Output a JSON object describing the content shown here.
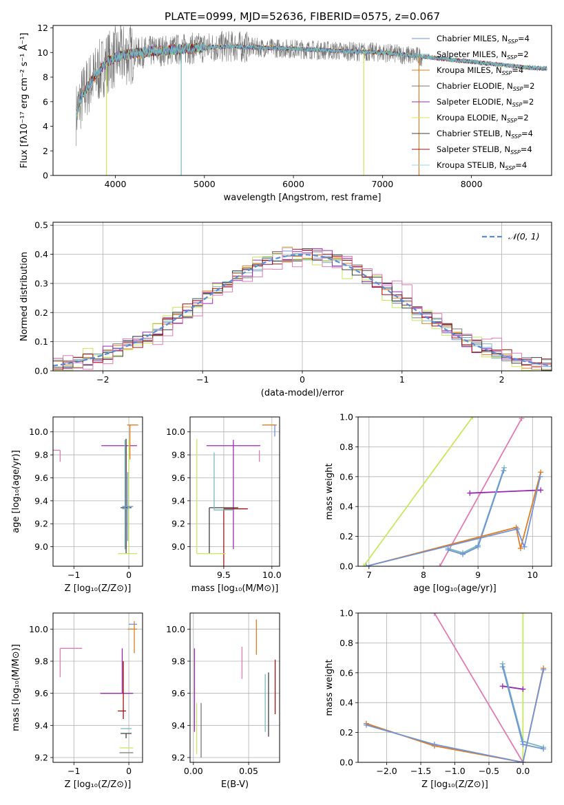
{
  "colors": {
    "chabrier_miles": "#6f93d8",
    "salpeter_miles": "#79b8b8",
    "kroupa_miles": "#e07b1e",
    "chabrier_elodie": "#777777",
    "salpeter_elodie": "#9a27b4",
    "kroupa_elodie": "#d8e85a",
    "chabrier_stelib": "#3f3f3f",
    "salpeter_stelib": "#a01010",
    "kroupa_stelib": "#8fd8e8",
    "pink": "#e07ab2",
    "lime": "#c6e85a",
    "normal_curve": "#5b8bd6",
    "grid": "#b0b0b0"
  },
  "chart_data": [
    {
      "id": "spectrum",
      "type": "line",
      "title": "PLATE=0999, MJD=52636, FIBERID=0575, z=0.067",
      "xlabel": "wavelength [Angstrom, rest frame]",
      "ylabel": "Flux [fλ10⁻¹⁷ erg cm⁻² s⁻¹ Å⁻¹]",
      "xlim": [
        3300,
        8900
      ],
      "ylim": [
        0,
        12.2
      ],
      "xticks": [
        4000,
        5000,
        6000,
        7000,
        8000
      ],
      "yticks": [
        0,
        2,
        4,
        6,
        8,
        10,
        12
      ],
      "grid": false,
      "legend_position": "top-right",
      "legend": [
        {
          "label": "Chabrier MILES, N",
          "sub": "SSP",
          "suffix": "=4",
          "color": "chabrier_miles"
        },
        {
          "label": "Salpeter MILES, N",
          "sub": "SSP",
          "suffix": "=2",
          "color": "salpeter_miles"
        },
        {
          "label": "Kroupa MILES, N",
          "sub": "SSP",
          "suffix": "=4",
          "color": "kroupa_miles"
        },
        {
          "label": "Chabrier ELODIE, N",
          "sub": "SSP",
          "suffix": "=2",
          "color": "chabrier_elodie"
        },
        {
          "label": "Salpeter ELODIE, N",
          "sub": "SSP",
          "suffix": "=2",
          "color": "salpeter_elodie"
        },
        {
          "label": "Kroupa ELODIE, N",
          "sub": "SSP",
          "suffix": "=2",
          "color": "kroupa_elodie"
        },
        {
          "label": "Chabrier STELIB, N",
          "sub": "SSP",
          "suffix": "=4",
          "color": "chabrier_stelib"
        },
        {
          "label": "Salpeter STELIB, N",
          "sub": "SSP",
          "suffix": "=4",
          "color": "salpeter_stelib"
        },
        {
          "label": "Kroupa STELIB, N",
          "sub": "SSP",
          "suffix": "=4",
          "color": "kroupa_stelib"
        }
      ],
      "model_curve": {
        "x": [
          3560,
          3620,
          3700,
          3800,
          3900,
          4000,
          4100,
          4200,
          4400,
          4600,
          4800,
          5000,
          5300,
          5600,
          6000,
          6300,
          6600,
          7000,
          7400,
          7800,
          8200,
          8600,
          8800
        ],
        "y": [
          5.0,
          6.3,
          7.4,
          8.3,
          9.2,
          9.6,
          9.8,
          9.9,
          10.1,
          10.2,
          10.3,
          10.4,
          10.5,
          10.4,
          10.3,
          10.2,
          10.1,
          10.0,
          9.7,
          9.4,
          9.1,
          8.8,
          8.7
        ]
      },
      "observed_extent": [
        3560,
        7450
      ],
      "glitches": [
        {
          "x": 3900,
          "color": "lime"
        },
        {
          "x": 4740,
          "color": "salpeter_miles"
        },
        {
          "x": 6790,
          "color": "lime"
        },
        {
          "x": 7410,
          "color": "kroupa_miles"
        }
      ]
    },
    {
      "id": "residuals",
      "type": "histogram",
      "xlabel": "(data-model)/error",
      "ylabel": "Normed distribution",
      "xlim": [
        -2.5,
        2.5
      ],
      "ylim": [
        0,
        0.51
      ],
      "xticks": [
        -2,
        -1,
        0,
        1,
        2
      ],
      "yticks": [
        0.0,
        0.1,
        0.2,
        0.3,
        0.4,
        0.5
      ],
      "grid": true,
      "legend_position": "top-right",
      "legend": [
        {
          "label": "𝒩(0, 1)",
          "color": "normal_curve",
          "style": "dashed"
        }
      ],
      "bin_width": 0.1,
      "series": [
        {
          "color": "chabrier_miles",
          "offset": 0.0,
          "spread": 0.006
        },
        {
          "color": "salpeter_miles",
          "offset": 0.01,
          "spread": 0.008
        },
        {
          "color": "kroupa_miles",
          "offset": -0.02,
          "spread": 0.01
        },
        {
          "color": "chabrier_elodie",
          "offset": 0.0,
          "spread": 0.012
        },
        {
          "color": "salpeter_elodie",
          "offset": 0.01,
          "spread": 0.014
        },
        {
          "color": "lime",
          "offset": -0.05,
          "spread": 0.03
        },
        {
          "color": "chabrier_stelib",
          "offset": 0.02,
          "spread": 0.01
        },
        {
          "color": "salpeter_stelib",
          "offset": 0.0,
          "spread": 0.012
        },
        {
          "color": "pink",
          "offset": 0.12,
          "spread": 0.03
        }
      ]
    },
    {
      "id": "age_vs_Z",
      "type": "errorbar",
      "xlabel": "Z [log₁₀(Z/Z⊙)]",
      "ylabel": "age  [log₁₀(age/yr)]",
      "xlim": [
        -1.38,
        0.25
      ],
      "ylim": [
        8.83,
        10.13
      ],
      "xticks": [
        -1,
        0
      ],
      "yticks": [
        9.0,
        9.2,
        9.4,
        9.6,
        9.8,
        10.0
      ],
      "grid": true,
      "points": [
        {
          "x": -1.25,
          "y": 9.84,
          "xerr": [
            0.3,
            0.0
          ],
          "yerr": [
            0.1,
            0.0
          ],
          "color": "pink"
        },
        {
          "x": -0.05,
          "y": 9.88,
          "xerr": [
            0.45,
            0.2
          ],
          "yerr": [
            0.9,
            0.0
          ],
          "color": "salpeter_elodie"
        },
        {
          "x": 0.02,
          "y": 10.06,
          "xerr": [
            0.05,
            0.15
          ],
          "yerr": [
            0.3,
            0.0
          ],
          "color": "kroupa_miles"
        },
        {
          "x": -0.05,
          "y": 9.34,
          "xerr": [
            0.1,
            0.1
          ],
          "yerr": [
            0.4,
            0.6
          ],
          "color": "chabrier_stelib"
        },
        {
          "x": -0.07,
          "y": 9.33,
          "xerr": [
            0.05,
            0.07
          ],
          "yerr": [
            0.35,
            0.6
          ],
          "color": "salpeter_miles"
        },
        {
          "x": 0.0,
          "y": 8.94,
          "xerr": [
            0.2,
            0.15
          ],
          "yerr": [
            0.0,
            1.0
          ],
          "color": "lime"
        },
        {
          "x": -0.02,
          "y": 9.35,
          "xerr": [
            0.1,
            0.1
          ],
          "yerr": [
            0.3,
            0.3
          ],
          "color": "chabrier_miles"
        }
      ]
    },
    {
      "id": "age_vs_mass",
      "type": "errorbar",
      "xlabel": "mass [log₁₀(M/M⊙)]",
      "ylabel": "",
      "xlim": [
        9.15,
        10.08
      ],
      "ylim": [
        8.83,
        10.13
      ],
      "xticks": [
        9.5,
        10.0
      ],
      "yticks": [
        9.0,
        9.2,
        9.4,
        9.6,
        9.8,
        10.0
      ],
      "grid": true,
      "points": [
        {
          "x": 9.87,
          "y": 9.84,
          "xerr": [
            0.0,
            0.0
          ],
          "yerr": [
            0.1,
            0.0
          ],
          "color": "pink"
        },
        {
          "x": 9.6,
          "y": 9.88,
          "xerr": [
            0.28,
            0.28
          ],
          "yerr": [
            0.9,
            0.05
          ],
          "color": "salpeter_elodie"
        },
        {
          "x": 10.0,
          "y": 10.06,
          "xerr": [
            0.1,
            0.05
          ],
          "yerr": [
            0.0,
            0.0
          ],
          "color": "kroupa_miles"
        },
        {
          "x": 9.35,
          "y": 9.34,
          "xerr": [
            0.0,
            0.3
          ],
          "yerr": [
            0.4,
            0.0
          ],
          "color": "chabrier_stelib"
        },
        {
          "x": 9.5,
          "y": 9.33,
          "xerr": [
            0.0,
            0.25
          ],
          "yerr": [
            0.5,
            0.0
          ],
          "color": "salpeter_stelib"
        },
        {
          "x": 9.22,
          "y": 8.94,
          "xerr": [
            0.0,
            0.3
          ],
          "yerr": [
            0.0,
            1.0
          ],
          "color": "lime"
        },
        {
          "x": 9.4,
          "y": 9.32,
          "xerr": [
            0.0,
            0.2
          ],
          "yerr": [
            0.0,
            0.5
          ],
          "color": "salpeter_miles"
        },
        {
          "x": 10.03,
          "y": 10.06,
          "xerr": [
            0.0,
            0.0
          ],
          "yerr": [
            0.1,
            0.0
          ],
          "color": "chabrier_miles"
        }
      ]
    },
    {
      "id": "massweight_vs_age",
      "type": "line",
      "xlabel": "age  [log₁₀(age/yr)]",
      "ylabel": "mass weight",
      "xlim": [
        6.8,
        10.35
      ],
      "ylim": [
        0,
        1.0
      ],
      "xticks": [
        7,
        8,
        9,
        10
      ],
      "yticks": [
        0.0,
        0.2,
        0.4,
        0.6,
        0.8,
        1.0
      ],
      "grid": true,
      "series": [
        {
          "name": "",
          "color": "lime",
          "x": [
            6.9,
            8.9
          ],
          "y": [
            0.0,
            1.0
          ]
        },
        {
          "name": "",
          "color": "pink",
          "x": [
            8.3,
            9.8
          ],
          "y": [
            0.0,
            0.99
          ]
        },
        {
          "name": "",
          "color": "salpeter_elodie",
          "x": [
            8.85,
            10.15
          ],
          "y": [
            0.49,
            0.51
          ]
        },
        {
          "name": "",
          "color": "salpeter_miles",
          "x": [
            8.45,
            8.72,
            9.0,
            9.48
          ],
          "y": [
            0.12,
            0.09,
            0.14,
            0.66
          ]
        },
        {
          "name": "",
          "color": "chabrier_miles",
          "x": [
            8.45,
            8.72,
            9.0,
            9.47
          ],
          "y": [
            0.11,
            0.08,
            0.13,
            0.64
          ]
        },
        {
          "name": "",
          "color": "kroupa_miles",
          "x": [
            6.95,
            9.7,
            9.78,
            10.15
          ],
          "y": [
            0.0,
            0.26,
            0.12,
            0.63
          ]
        },
        {
          "name": "",
          "color": "chabrier_miles",
          "x": [
            6.95,
            9.72,
            9.85,
            10.14
          ],
          "y": [
            0.0,
            0.25,
            0.13,
            0.6
          ]
        }
      ]
    },
    {
      "id": "mass_vs_Z",
      "type": "errorbar",
      "xlabel": "Z [log₁₀(Z/Z⊙)]",
      "ylabel": "mass [log₁₀(M/M⊙)]",
      "xlim": [
        -1.38,
        0.25
      ],
      "ylim": [
        9.17,
        10.1
      ],
      "xticks": [
        -1,
        0
      ],
      "yticks": [
        9.2,
        9.4,
        9.6,
        9.8,
        10.0
      ],
      "grid": true,
      "points": [
        {
          "x": -1.25,
          "y": 9.88,
          "xerr": [
            0.0,
            0.4
          ],
          "yerr": [
            0.18,
            0.0
          ],
          "color": "pink"
        },
        {
          "x": -0.12,
          "y": 9.6,
          "xerr": [
            0.4,
            0.2
          ],
          "yerr": [
            0.0,
            0.28
          ],
          "color": "salpeter_elodie"
        },
        {
          "x": 0.1,
          "y": 10.0,
          "xerr": [
            0.12,
            0.05
          ],
          "yerr": [
            0.15,
            0.05
          ],
          "color": "kroupa_miles"
        },
        {
          "x": 0.1,
          "y": 10.03,
          "xerr": [
            0.1,
            0.05
          ],
          "yerr": [
            0.0,
            0.0
          ],
          "color": "chabrier_miles"
        },
        {
          "x": -0.1,
          "y": 9.49,
          "xerr": [
            0.1,
            0.05
          ],
          "yerr": [
            0.05,
            0.31
          ],
          "color": "salpeter_stelib"
        },
        {
          "x": -0.05,
          "y": 9.38,
          "xerr": [
            0.1,
            0.1
          ],
          "yerr": [
            0.0,
            0.0
          ],
          "color": "salpeter_miles"
        },
        {
          "x": -0.05,
          "y": 9.35,
          "xerr": [
            0.1,
            0.1
          ],
          "yerr": [
            0.03,
            0.0
          ],
          "color": "chabrier_stelib"
        },
        {
          "x": -0.02,
          "y": 9.26,
          "xerr": [
            0.15,
            0.1
          ],
          "yerr": [
            0.0,
            0.0
          ],
          "color": "lime"
        },
        {
          "x": -0.02,
          "y": 9.23,
          "xerr": [
            0.15,
            0.1
          ],
          "yerr": [
            0.0,
            0.0
          ],
          "color": "chabrier_elodie"
        }
      ]
    },
    {
      "id": "mass_vs_ebv",
      "type": "errorbar",
      "xlabel": "E(B-V)",
      "ylabel": "",
      "xlim": [
        -0.003,
        0.078
      ],
      "ylim": [
        9.17,
        10.1
      ],
      "xticks": [
        0.0,
        0.05
      ],
      "yticks": [
        9.2,
        9.4,
        9.6,
        9.8,
        10.0
      ],
      "grid": true,
      "points": [
        {
          "x": 0.001,
          "y": 9.62,
          "xerr": [
            0,
            0
          ],
          "yerr": [
            0.26,
            0.26
          ],
          "color": "salpeter_elodie"
        },
        {
          "x": 0.003,
          "y": 9.38,
          "xerr": [
            0,
            0
          ],
          "yerr": [
            0.16,
            0.16
          ],
          "color": "lime"
        },
        {
          "x": 0.007,
          "y": 9.37,
          "xerr": [
            0,
            0
          ],
          "yerr": [
            0.17,
            0.17
          ],
          "color": "chabrier_elodie"
        },
        {
          "x": 0.044,
          "y": 9.79,
          "xerr": [
            0,
            0
          ],
          "yerr": [
            0.1,
            0.1
          ],
          "color": "pink"
        },
        {
          "x": 0.057,
          "y": 9.95,
          "xerr": [
            0,
            0
          ],
          "yerr": [
            0.11,
            0.11
          ],
          "color": "kroupa_miles"
        },
        {
          "x": 0.065,
          "y": 9.54,
          "xerr": [
            0,
            0
          ],
          "yerr": [
            0.18,
            0.18
          ],
          "color": "salpeter_miles"
        },
        {
          "x": 0.068,
          "y": 9.53,
          "xerr": [
            0,
            0
          ],
          "yerr": [
            0.2,
            0.2
          ],
          "color": "chabrier_stelib"
        },
        {
          "x": 0.074,
          "y": 9.64,
          "xerr": [
            0,
            0
          ],
          "yerr": [
            0.17,
            0.17
          ],
          "color": "salpeter_stelib"
        }
      ]
    },
    {
      "id": "massweight_vs_Z",
      "type": "line",
      "xlabel": "Z [log₁₀(Z/Z⊙)]",
      "ylabel": "mass weight",
      "xlim": [
        -2.42,
        0.42
      ],
      "ylim": [
        0,
        1.0
      ],
      "xticks": [
        -2.0,
        -1.5,
        -1.0,
        -0.5,
        0.0
      ],
      "yticks": [
        0.0,
        0.2,
        0.4,
        0.6,
        0.8,
        1.0
      ],
      "grid": true,
      "series": [
        {
          "name": "",
          "color": "lime",
          "x": [
            0.0,
            0.0
          ],
          "y": [
            0.0,
            1.0
          ]
        },
        {
          "name": "",
          "color": "pink",
          "x": [
            -1.3,
            0.0
          ],
          "y": [
            1.0,
            0.0
          ]
        },
        {
          "name": "",
          "color": "salpeter_elodie",
          "x": [
            -0.3,
            0.0
          ],
          "y": [
            0.51,
            0.49
          ]
        },
        {
          "name": "",
          "color": "salpeter_miles",
          "x": [
            -0.3,
            0.0,
            0.3
          ],
          "y": [
            0.66,
            0.14,
            0.1
          ]
        },
        {
          "name": "",
          "color": "chabrier_miles",
          "x": [
            -0.3,
            0.0,
            0.3
          ],
          "y": [
            0.64,
            0.12,
            0.09
          ]
        },
        {
          "name": "",
          "color": "kroupa_miles",
          "x": [
            -2.3,
            -1.3,
            0.0,
            0.3
          ],
          "y": [
            0.26,
            0.11,
            0.0,
            0.63
          ]
        },
        {
          "name": "",
          "color": "chabrier_miles",
          "x": [
            -2.3,
            -1.3,
            0.0,
            0.3
          ],
          "y": [
            0.25,
            0.12,
            0.0,
            0.62
          ]
        }
      ]
    }
  ]
}
